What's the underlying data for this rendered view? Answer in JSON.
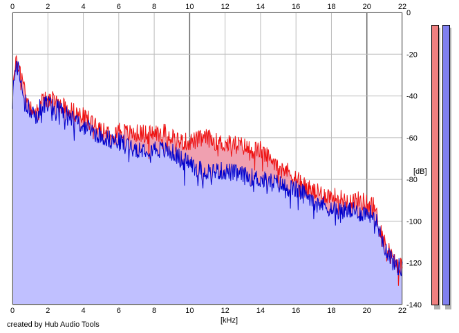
{
  "chart_data": {
    "type": "area",
    "title": "",
    "xlabel": "[kHz]",
    "ylabel": "[dB]",
    "xlim": [
      0,
      22
    ],
    "ylim": [
      -140,
      0
    ],
    "x_ticks": [
      "0",
      "2",
      "4",
      "6",
      "8",
      "10",
      "12",
      "14",
      "16",
      "18",
      "20",
      "22"
    ],
    "y_ticks": [
      "0",
      "-20",
      "-40",
      "-60",
      "-80",
      "-100",
      "-120",
      "-140"
    ],
    "grid": true,
    "series": [
      {
        "color": "#ee1111",
        "fill": "#f0a0b0",
        "points": [
          [
            0,
            -35
          ],
          [
            0.25,
            -23
          ],
          [
            0.5,
            -30
          ],
          [
            0.8,
            -40
          ],
          [
            1,
            -45
          ],
          [
            1.3,
            -48
          ],
          [
            1.6,
            -43
          ],
          [
            2,
            -41
          ],
          [
            2.5,
            -43
          ],
          [
            3,
            -45
          ],
          [
            3.5,
            -48
          ],
          [
            4,
            -50
          ],
          [
            4.5,
            -52
          ],
          [
            5,
            -55
          ],
          [
            5.5,
            -57
          ],
          [
            6,
            -56
          ],
          [
            6.5,
            -58
          ],
          [
            7,
            -58
          ],
          [
            7.5,
            -58
          ],
          [
            8,
            -58
          ],
          [
            8.5,
            -57
          ],
          [
            9,
            -59
          ],
          [
            9.5,
            -62
          ],
          [
            10,
            -62
          ],
          [
            10.5,
            -61
          ],
          [
            11,
            -60
          ],
          [
            11.5,
            -62
          ],
          [
            12,
            -63
          ],
          [
            12.5,
            -63
          ],
          [
            13,
            -64
          ],
          [
            13.5,
            -66
          ],
          [
            14,
            -66
          ],
          [
            14.5,
            -70
          ],
          [
            15,
            -72
          ],
          [
            15.5,
            -76
          ],
          [
            16,
            -79
          ],
          [
            16.5,
            -83
          ],
          [
            17,
            -86
          ],
          [
            17.5,
            -87
          ],
          [
            18,
            -88
          ],
          [
            18.5,
            -89
          ],
          [
            19,
            -90
          ],
          [
            19.5,
            -90
          ],
          [
            20,
            -91
          ],
          [
            20.4,
            -93
          ],
          [
            20.7,
            -102
          ],
          [
            21,
            -110
          ],
          [
            21.5,
            -119
          ],
          [
            22,
            -122
          ]
        ]
      },
      {
        "color": "#0000cc",
        "fill": "#c0c0ff",
        "points": [
          [
            0,
            -40
          ],
          [
            0.25,
            -25
          ],
          [
            0.5,
            -33
          ],
          [
            0.8,
            -45
          ],
          [
            1,
            -47
          ],
          [
            1.3,
            -50
          ],
          [
            1.6,
            -45
          ],
          [
            2,
            -44
          ],
          [
            2.5,
            -46
          ],
          [
            3,
            -48
          ],
          [
            3.5,
            -52
          ],
          [
            4,
            -54
          ],
          [
            4.5,
            -57
          ],
          [
            5,
            -59
          ],
          [
            5.5,
            -61
          ],
          [
            6,
            -62
          ],
          [
            6.5,
            -63
          ],
          [
            7,
            -65
          ],
          [
            7.5,
            -65
          ],
          [
            8,
            -65
          ],
          [
            8.5,
            -66
          ],
          [
            9,
            -67
          ],
          [
            9.5,
            -70
          ],
          [
            10,
            -72
          ],
          [
            10.5,
            -75
          ],
          [
            11,
            -76
          ],
          [
            11.5,
            -76
          ],
          [
            12,
            -76
          ],
          [
            12.5,
            -77
          ],
          [
            13,
            -78
          ],
          [
            13.5,
            -79
          ],
          [
            14,
            -80
          ],
          [
            14.5,
            -81
          ],
          [
            15,
            -82
          ],
          [
            15.5,
            -84
          ],
          [
            16,
            -85
          ],
          [
            16.5,
            -87
          ],
          [
            17,
            -89
          ],
          [
            17.5,
            -92
          ],
          [
            18,
            -94
          ],
          [
            18.5,
            -95
          ],
          [
            19,
            -95
          ],
          [
            19.5,
            -96
          ],
          [
            20,
            -96
          ],
          [
            20.4,
            -97
          ],
          [
            20.7,
            -104
          ],
          [
            21,
            -112
          ],
          [
            21.5,
            -120
          ],
          [
            22,
            -123
          ]
        ]
      }
    ]
  },
  "credit": "created by Hub Audio Tools",
  "meters": [
    {
      "color": "#f08080",
      "level": 1.0
    },
    {
      "color": "#8080f0",
      "level": 1.0
    }
  ]
}
